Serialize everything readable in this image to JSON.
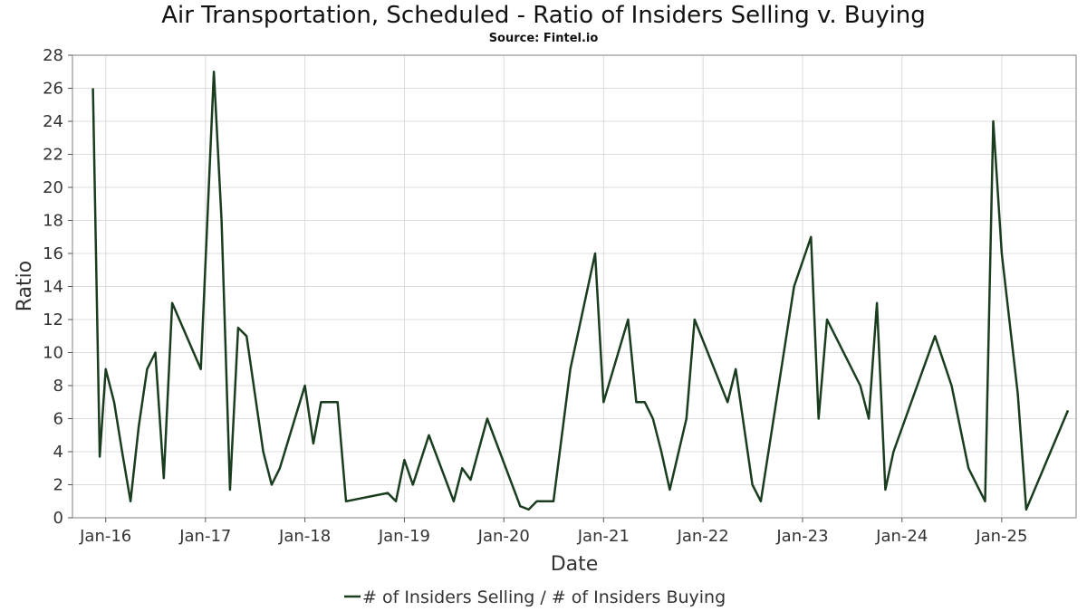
{
  "chart_data": {
    "type": "line",
    "title": "Air Transportation, Scheduled - Ratio of Insiders Selling v. Buying",
    "subtitle": "Source: Fintel.io",
    "xlabel": "Date",
    "ylabel": "Ratio",
    "ylim": [
      0,
      28
    ],
    "y_ticks": [
      0,
      2,
      4,
      6,
      8,
      10,
      12,
      14,
      16,
      18,
      20,
      22,
      24,
      26,
      28
    ],
    "x_range": [
      "2015-09-01",
      "2025-10-01"
    ],
    "x_ticks": [
      {
        "label": "Jan-16",
        "date": "2016-01-01"
      },
      {
        "label": "Jan-17",
        "date": "2017-01-01"
      },
      {
        "label": "Jan-18",
        "date": "2018-01-01"
      },
      {
        "label": "Jan-19",
        "date": "2019-01-01"
      },
      {
        "label": "Jan-20",
        "date": "2020-01-01"
      },
      {
        "label": "Jan-21",
        "date": "2021-01-01"
      },
      {
        "label": "Jan-22",
        "date": "2022-01-01"
      },
      {
        "label": "Jan-23",
        "date": "2023-01-01"
      },
      {
        "label": "Jan-24",
        "date": "2024-01-01"
      },
      {
        "label": "Jan-25",
        "date": "2025-01-01"
      }
    ],
    "grid": true,
    "legend_position": "bottom-center",
    "line_color": "#1a3d1f",
    "series": [
      {
        "name": "# of Insiders Selling / # of Insiders Buying",
        "points": [
          [
            "2015-11-15",
            26
          ],
          [
            "2015-12-10",
            3.7
          ],
          [
            "2016-01-01",
            9
          ],
          [
            "2016-02-01",
            7
          ],
          [
            "2016-03-01",
            4
          ],
          [
            "2016-04-01",
            1
          ],
          [
            "2016-05-01",
            5.5
          ],
          [
            "2016-06-01",
            9
          ],
          [
            "2016-07-01",
            10
          ],
          [
            "2016-08-01",
            2.4
          ],
          [
            "2016-09-01",
            13
          ],
          [
            "2016-12-15",
            9
          ],
          [
            "2017-02-01",
            27
          ],
          [
            "2017-03-01",
            18
          ],
          [
            "2017-04-01",
            1.7
          ],
          [
            "2017-05-01",
            11.5
          ],
          [
            "2017-06-01",
            11
          ],
          [
            "2017-08-01",
            4
          ],
          [
            "2017-09-01",
            2
          ],
          [
            "2017-10-01",
            3
          ],
          [
            "2018-01-01",
            8
          ],
          [
            "2018-02-01",
            4.5
          ],
          [
            "2018-03-01",
            7
          ],
          [
            "2018-05-01",
            7
          ],
          [
            "2018-06-01",
            1
          ],
          [
            "2018-11-01",
            1.5
          ],
          [
            "2018-12-01",
            1
          ],
          [
            "2019-01-01",
            3.5
          ],
          [
            "2019-02-01",
            2
          ],
          [
            "2019-04-01",
            5
          ],
          [
            "2019-07-01",
            1
          ],
          [
            "2019-08-01",
            3
          ],
          [
            "2019-09-01",
            2.3
          ],
          [
            "2019-11-01",
            6
          ],
          [
            "2020-03-01",
            0.7
          ],
          [
            "2020-04-01",
            0.5
          ],
          [
            "2020-05-01",
            1
          ],
          [
            "2020-07-01",
            1
          ],
          [
            "2020-09-01",
            9
          ],
          [
            "2020-12-01",
            16
          ],
          [
            "2021-01-01",
            7
          ],
          [
            "2021-04-01",
            12
          ],
          [
            "2021-05-01",
            7
          ],
          [
            "2021-06-01",
            7
          ],
          [
            "2021-07-01",
            6
          ],
          [
            "2021-08-01",
            4
          ],
          [
            "2021-09-01",
            1.7
          ],
          [
            "2021-11-01",
            6
          ],
          [
            "2021-12-01",
            12
          ],
          [
            "2022-04-01",
            7
          ],
          [
            "2022-05-01",
            9
          ],
          [
            "2022-07-01",
            2
          ],
          [
            "2022-08-01",
            1
          ],
          [
            "2022-12-01",
            14
          ],
          [
            "2023-02-01",
            17
          ],
          [
            "2023-03-01",
            6
          ],
          [
            "2023-04-01",
            12
          ],
          [
            "2023-08-01",
            8
          ],
          [
            "2023-09-01",
            6
          ],
          [
            "2023-10-01",
            13
          ],
          [
            "2023-11-01",
            1.7
          ],
          [
            "2023-12-01",
            4
          ],
          [
            "2024-05-01",
            11
          ],
          [
            "2024-07-01",
            8
          ],
          [
            "2024-09-01",
            3
          ],
          [
            "2024-11-01",
            1
          ],
          [
            "2024-12-01",
            24
          ],
          [
            "2025-01-01",
            16
          ],
          [
            "2025-03-01",
            7.5
          ],
          [
            "2025-04-01",
            0.5
          ],
          [
            "2025-09-01",
            6.5
          ]
        ]
      }
    ]
  }
}
